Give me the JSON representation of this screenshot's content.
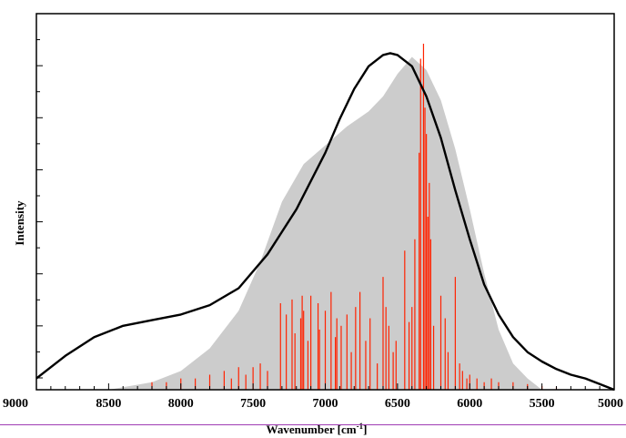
{
  "chart_data": {
    "type": "area",
    "xlabel": "Wavenumber [cm",
    "xlabel_sup": "-1",
    "xlabel_close": "]",
    "ylabel": "Intensity",
    "xlim": [
      9000,
      5000
    ],
    "ylim": [
      0,
      1.0
    ],
    "x_ticks": [
      9000,
      8500,
      8000,
      7500,
      7000,
      6500,
      6000,
      5500,
      5000
    ],
    "x_tick_labels": [
      "9000",
      "8500",
      "8000",
      "7500",
      "7000",
      "6500",
      "6000",
      "5500",
      "5000"
    ],
    "y_tick_count": 7,
    "grid": false,
    "legend": "none",
    "colors": {
      "filled_area": "#cccccc",
      "curve": "#000000",
      "sticks": "#ff2200",
      "rule": "#a03cb4"
    },
    "series": [
      {
        "kind": "filled_area",
        "x": [
          8500,
          8200,
          8000,
          7800,
          7600,
          7450,
          7300,
          7150,
          7000,
          6850,
          6700,
          6600,
          6500,
          6400,
          6300,
          6200,
          6100,
          6000,
          5900,
          5800,
          5700,
          5600,
          5500
        ],
        "y": [
          0.0,
          0.02,
          0.05,
          0.11,
          0.21,
          0.34,
          0.5,
          0.6,
          0.65,
          0.7,
          0.74,
          0.78,
          0.84,
          0.885,
          0.85,
          0.77,
          0.64,
          0.48,
          0.31,
          0.16,
          0.07,
          0.03,
          0.0
        ]
      },
      {
        "kind": "line",
        "x": [
          9000,
          8800,
          8600,
          8400,
          8200,
          8000,
          7800,
          7600,
          7400,
          7200,
          7000,
          6900,
          6800,
          6700,
          6600,
          6550,
          6500,
          6400,
          6300,
          6200,
          6100,
          6000,
          5900,
          5800,
          5700,
          5600,
          5500,
          5400,
          5300,
          5200,
          5100,
          5000
        ],
        "y": [
          0.03,
          0.09,
          0.14,
          0.17,
          0.185,
          0.2,
          0.225,
          0.27,
          0.36,
          0.48,
          0.63,
          0.72,
          0.8,
          0.86,
          0.89,
          0.895,
          0.89,
          0.86,
          0.78,
          0.67,
          0.53,
          0.4,
          0.28,
          0.2,
          0.14,
          0.1,
          0.075,
          0.055,
          0.04,
          0.03,
          0.015,
          0.0
        ]
      },
      {
        "kind": "sticks",
        "x": [
          7310,
          7270,
          7230,
          7210,
          7170,
          7160,
          7150,
          7120,
          7100,
          7050,
          7040,
          7000,
          6960,
          6930,
          6920,
          6890,
          6850,
          6820,
          6790,
          6760,
          6720,
          6690,
          6640,
          6600,
          6580,
          6560,
          6530,
          6510,
          6450,
          6420,
          6400,
          6380,
          6350,
          6340,
          6320,
          6310,
          6300,
          6290,
          6280,
          6270,
          6250,
          6200,
          6170,
          6150,
          6100,
          6070,
          6050,
          6020,
          7400,
          7450,
          7500,
          7550,
          7600,
          7650,
          7700,
          7800,
          7900,
          8000,
          8100,
          8200,
          6000,
          5950,
          5900,
          5850,
          5800,
          5700,
          5600,
          5500,
          5400
        ],
        "y": [
          0.23,
          0.2,
          0.24,
          0.15,
          0.19,
          0.25,
          0.21,
          0.13,
          0.25,
          0.23,
          0.16,
          0.21,
          0.26,
          0.14,
          0.19,
          0.17,
          0.2,
          0.1,
          0.22,
          0.26,
          0.13,
          0.19,
          0.07,
          0.3,
          0.22,
          0.17,
          0.1,
          0.13,
          0.37,
          0.18,
          0.22,
          0.4,
          0.63,
          0.88,
          0.92,
          0.75,
          0.68,
          0.46,
          0.55,
          0.4,
          0.17,
          0.25,
          0.19,
          0.1,
          0.3,
          0.07,
          0.05,
          0.03,
          0.05,
          0.07,
          0.06,
          0.04,
          0.06,
          0.03,
          0.05,
          0.04,
          0.03,
          0.03,
          0.02,
          0.02,
          0.04,
          0.03,
          0.02,
          0.03,
          0.02,
          0.02,
          0.015,
          0.01,
          0.008
        ]
      }
    ]
  }
}
